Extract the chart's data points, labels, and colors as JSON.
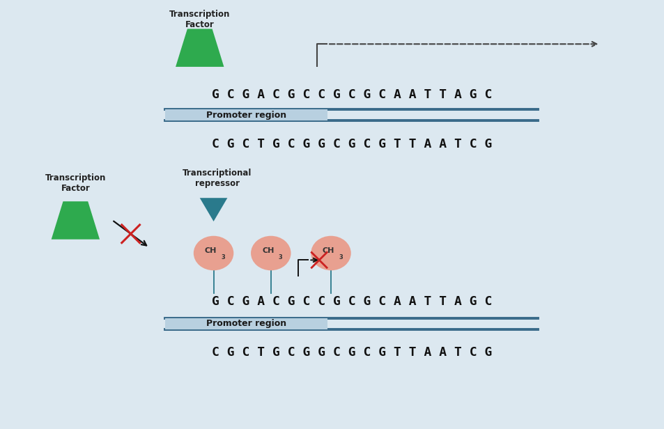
{
  "bg_color": "#dce8f0",
  "dna_top": "G C G A C G C C G C G C A A T T A G C",
  "dna_bot": "C G C T G C G G C G C G T T A A T C G",
  "promoter_label": "Promoter region",
  "tf_label": "Transcription\nFactor",
  "tr_label": "Transcriptional\nrepressor",
  "dna_color": "#111111",
  "green_color": "#2eaa4e",
  "teal_color": "#2a7a8c",
  "pink_color": "#e8a090",
  "red_color": "#cc2222",
  "dashed_color": "#444444",
  "promoter_box_color": "#b8d0e0",
  "promoter_text_color": "#1a1a1a",
  "line_color": "#3a6b8a",
  "black": "#111111"
}
